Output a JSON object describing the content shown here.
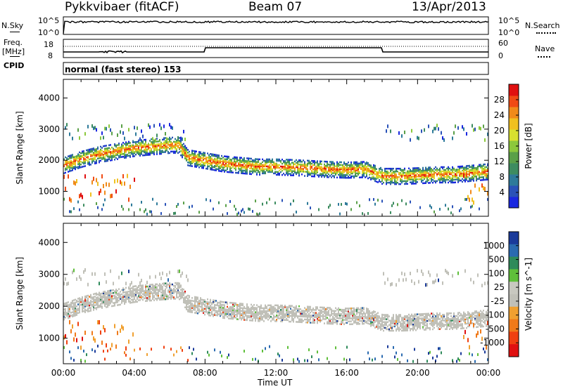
{
  "header": {
    "radar": "Pykkvibaer (fitACF)",
    "beam": "Beam 07",
    "date": "13/Apr/2013"
  },
  "top_panels": {
    "nsky_label": "N.Sky",
    "nsky_ticks": [
      "10^5",
      "10^0"
    ],
    "nsearch_label": "N.Search",
    "nsearch_ticks": [
      "10^5",
      "10^0"
    ],
    "freq_label": "Freq.",
    "freq_unit": "[MHz]",
    "freq_ticks": [
      "18",
      "8"
    ],
    "nave_label": "Nave",
    "nave_ticks": [
      "60",
      "0"
    ],
    "cpid_label": "CPID",
    "cpid_value": "normal (fast stereo) 153"
  },
  "colors": {
    "power_scale": [
      "#1a28e0",
      "#2a52b8",
      "#2e7a9a",
      "#3d8c60",
      "#5aa048",
      "#8cc83c",
      "#d8e030",
      "#f0c020",
      "#f08a1a",
      "#f04a14",
      "#e01010"
    ],
    "velocity_scale": [
      "#1a3a9a",
      "#2a6ab0",
      "#2e8a5a",
      "#5fbf3a",
      "#c8c8c0",
      "#c0c0b8",
      "#f0a030",
      "#f07a1a",
      "#f04010",
      "#e01010"
    ],
    "ground_scatter": "#c0c0b8"
  },
  "chart_data": [
    {
      "type": "heatmap",
      "title": "Power",
      "xlabel": "Time UT",
      "ylabel": "Slant Range [km]",
      "x_ticks": [
        "00:00",
        "04:00",
        "08:00",
        "12:00",
        "16:00",
        "20:00",
        "00:00"
      ],
      "y_ticks": [
        1000,
        2000,
        3000,
        4000
      ],
      "ylim": [
        200,
        4600
      ],
      "colorbar": {
        "label": "Power [dB]",
        "ticks": [
          4,
          8,
          12,
          16,
          20,
          24,
          28
        ]
      },
      "echo_band": {
        "hours": [
          0,
          1,
          2,
          3,
          4,
          5,
          6,
          6.5,
          7,
          8,
          9,
          10,
          11,
          12,
          13,
          14,
          15,
          16,
          17,
          18,
          19,
          20,
          21,
          22,
          23,
          24
        ],
        "range_km": [
          1850,
          2050,
          2200,
          2300,
          2400,
          2450,
          2500,
          2500,
          2100,
          2000,
          1900,
          1850,
          1800,
          1800,
          1780,
          1750,
          1720,
          1700,
          1720,
          1500,
          1500,
          1520,
          1550,
          1550,
          1600,
          1650
        ]
      }
    },
    {
      "type": "heatmap",
      "title": "Velocity",
      "xlabel": "Time UT",
      "ylabel": "Slant Range [km]",
      "x_ticks": [
        "00:00",
        "04:00",
        "08:00",
        "12:00",
        "16:00",
        "20:00",
        "00:00"
      ],
      "y_ticks": [
        1000,
        2000,
        3000,
        4000
      ],
      "ylim": [
        200,
        4600
      ],
      "colorbar": {
        "label": "Velocity [m s^-1]",
        "ticks": [
          "1000",
          "500",
          "100",
          "25",
          "-25",
          "-100",
          "-500",
          "-1000"
        ]
      }
    }
  ],
  "footer": {
    "time_label": "Time UT"
  }
}
